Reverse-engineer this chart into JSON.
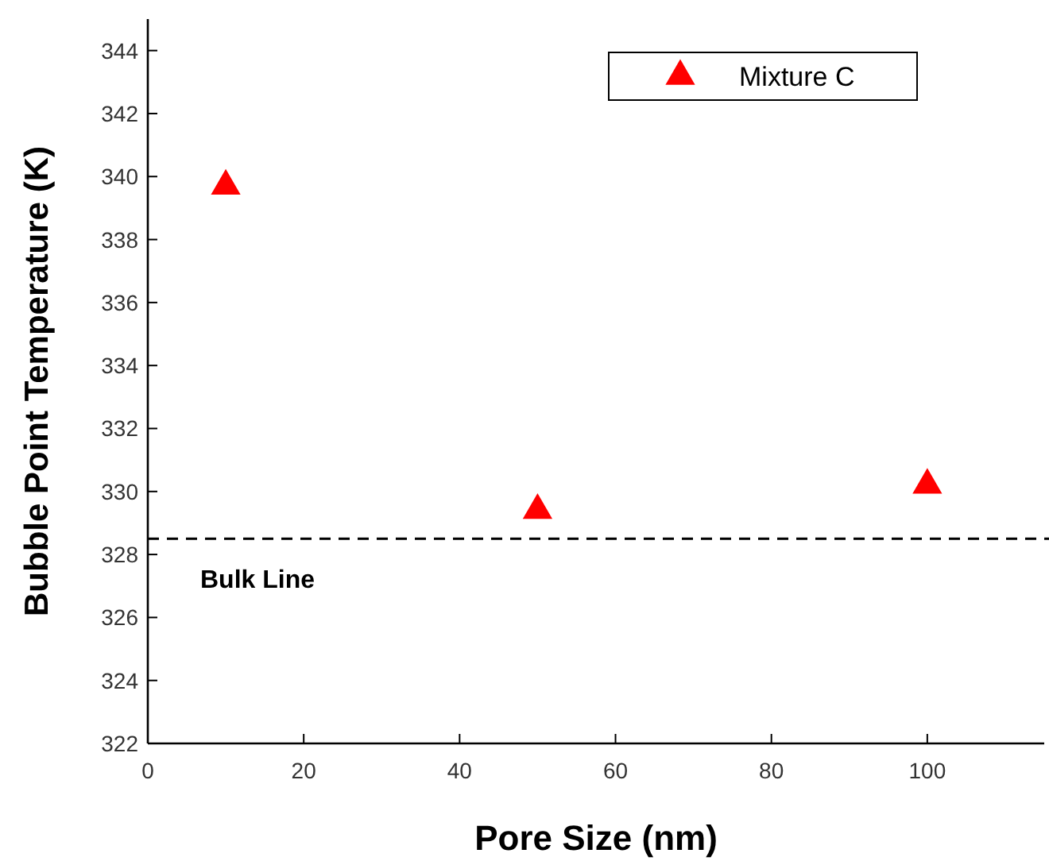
{
  "chart_data": {
    "type": "scatter",
    "xlabel": "Pore Size (nm)",
    "ylabel": "Bubble Point Temperature (K)",
    "xlim": [
      0,
      115
    ],
    "xticks": [
      0,
      20,
      40,
      60,
      80,
      100
    ],
    "ylim": [
      322,
      345
    ],
    "yticks": [
      322,
      324,
      326,
      328,
      330,
      332,
      334,
      336,
      338,
      340,
      342,
      344
    ],
    "marker": "triangle",
    "legend": "top right",
    "series": [
      {
        "name": "Mixture C",
        "color": "#ff0000",
        "x": [
          10,
          50,
          100
        ],
        "values": [
          339.7,
          329.4,
          330.2
        ]
      }
    ],
    "ref_lines": [
      {
        "axis": "y",
        "value": 328.5,
        "label": "Bulk Line",
        "color": "#000000",
        "line_style": "dashed"
      }
    ]
  }
}
